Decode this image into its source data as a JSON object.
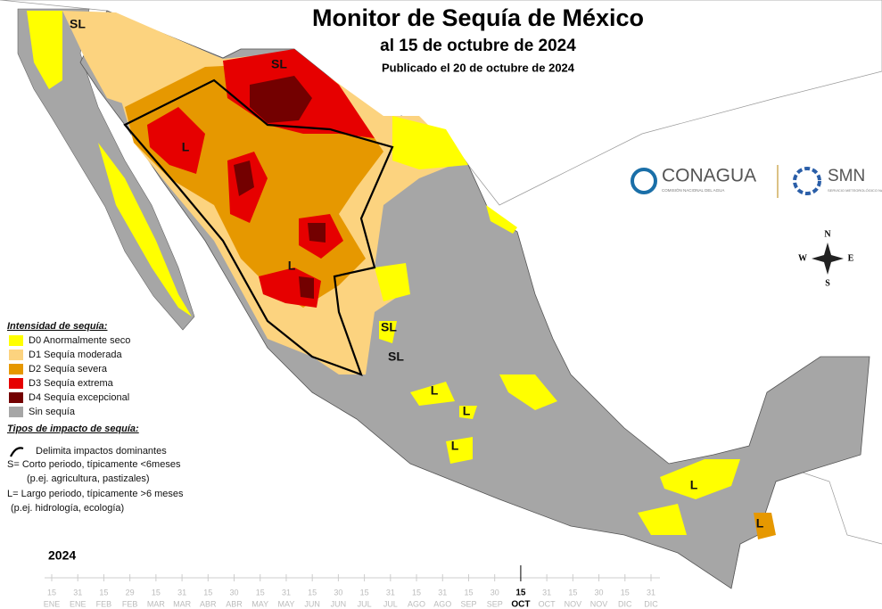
{
  "header": {
    "title": "Monitor de Sequía de México",
    "subtitle": "al 15 de octubre de 2024",
    "published": "Publicado el 20 de octubre de 2024"
  },
  "logos": {
    "conagua": "CONAGUA",
    "conagua_sub": "COMISIÓN NACIONAL DEL AGUA",
    "smn": "SMN",
    "smn_sub": "SERVICIO METEOROLÓGICO NACIONAL"
  },
  "compass": {
    "n": "N",
    "s": "S",
    "e": "E",
    "w": "W"
  },
  "legend": {
    "title": "Intensidad de sequía:",
    "items": [
      {
        "label": "D0 Anormalmente seco",
        "color": "#ffff00"
      },
      {
        "label": "D1 Sequía moderada",
        "color": "#fcd37f"
      },
      {
        "label": "D2 Sequía severa",
        "color": "#e69800"
      },
      {
        "label": "D3 Sequía extrema",
        "color": "#e60000"
      },
      {
        "label": "D4 Sequía excepcional",
        "color": "#730000"
      },
      {
        "label": "Sin sequía",
        "color": "#a6a6a6"
      }
    ]
  },
  "impacts": {
    "title": "Tipos de impacto de sequía:",
    "items": [
      "Delimita impactos dominantes",
      "S= Corto periodo, típicamente <6meses",
      "(p.ej. agricultura, pastizales)",
      "L= Largo periodo, típicamente >6 meses",
      "(p.ej. hidrología, ecología)"
    ]
  },
  "map_labels": [
    "SL",
    "SL",
    "L",
    "L",
    "SL",
    "SL",
    "L",
    "L",
    "L",
    "L",
    "L"
  ],
  "timeline": {
    "year": "2024",
    "ticks": [
      {
        "day": "15",
        "month": "ENE"
      },
      {
        "day": "31",
        "month": "ENE"
      },
      {
        "day": "15",
        "month": "FEB"
      },
      {
        "day": "29",
        "month": "FEB"
      },
      {
        "day": "15",
        "month": "MAR"
      },
      {
        "day": "31",
        "month": "MAR"
      },
      {
        "day": "15",
        "month": "ABR"
      },
      {
        "day": "30",
        "month": "ABR"
      },
      {
        "day": "15",
        "month": "MAY"
      },
      {
        "day": "31",
        "month": "MAY"
      },
      {
        "day": "15",
        "month": "JUN"
      },
      {
        "day": "30",
        "month": "JUN"
      },
      {
        "day": "15",
        "month": "JUL"
      },
      {
        "day": "31",
        "month": "JUL"
      },
      {
        "day": "15",
        "month": "AGO"
      },
      {
        "day": "31",
        "month": "AGO"
      },
      {
        "day": "15",
        "month": "SEP"
      },
      {
        "day": "30",
        "month": "SEP"
      },
      {
        "day": "15",
        "month": "OCT",
        "current": true
      },
      {
        "day": "31",
        "month": "OCT"
      },
      {
        "day": "15",
        "month": "NOV"
      },
      {
        "day": "30",
        "month": "NOV"
      },
      {
        "day": "15",
        "month": "DIC"
      },
      {
        "day": "31",
        "month": "DIC"
      }
    ]
  }
}
